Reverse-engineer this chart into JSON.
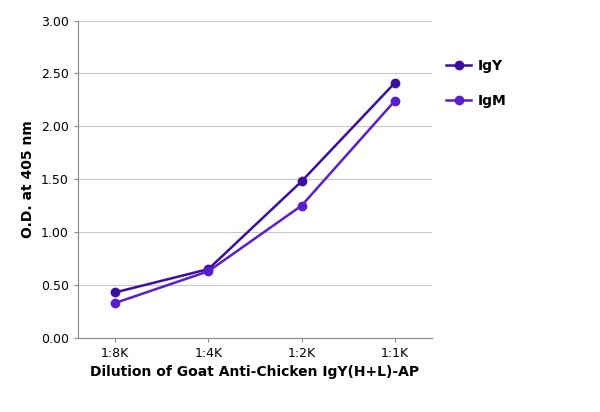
{
  "x_labels": [
    "1:8K",
    "1:4K",
    "1:2K",
    "1:1K"
  ],
  "x_values": [
    1,
    2,
    3,
    4
  ],
  "IgY_values": [
    0.43,
    0.65,
    1.48,
    2.41
  ],
  "IgM_values": [
    0.33,
    0.63,
    1.25,
    2.24
  ],
  "IgY_color": "#3b0f9e",
  "IgM_color": "#5b1ecc",
  "ylabel": "O.D. at 405 nm",
  "xlabel": "Dilution of Goat Anti-Chicken IgY(H+L)-AP",
  "ylim": [
    0.0,
    3.0
  ],
  "yticks": [
    0.0,
    0.5,
    1.0,
    1.5,
    2.0,
    2.5,
    3.0
  ],
  "axis_label_fontsize": 10,
  "tick_fontsize": 9,
  "legend_fontsize": 10,
  "line_width": 1.8,
  "marker_size": 6,
  "background_color": "#ffffff",
  "grid_color": "#c8c8c8"
}
